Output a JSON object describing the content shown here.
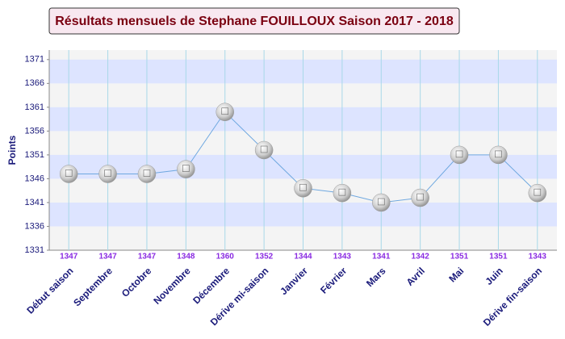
{
  "chart_data": {
    "type": "line",
    "title": "Résultats mensuels de Stephane FOUILLOUX Saison 2017 - 2018",
    "y_label": "Points",
    "categories": [
      "Début saison",
      "Septembre",
      "Octobre",
      "Novembre",
      "Décembre",
      "Dérive mi-saison",
      "Janvier",
      "Février",
      "Mars",
      "Avril",
      "Mai",
      "Juin",
      "Dérive fin-saison"
    ],
    "series": [
      {
        "name": "Points",
        "color": "#6fa8e0",
        "values": [
          1347,
          1347,
          1347,
          1348,
          1360,
          1352,
          1344,
          1343,
          1341,
          1342,
          1351,
          1351,
          1343
        ]
      }
    ],
    "ylim": [
      1331,
      1373
    ],
    "yticks": [
      1331,
      1336,
      1341,
      1346,
      1351,
      1356,
      1361,
      1366,
      1371
    ],
    "grid": true
  }
}
